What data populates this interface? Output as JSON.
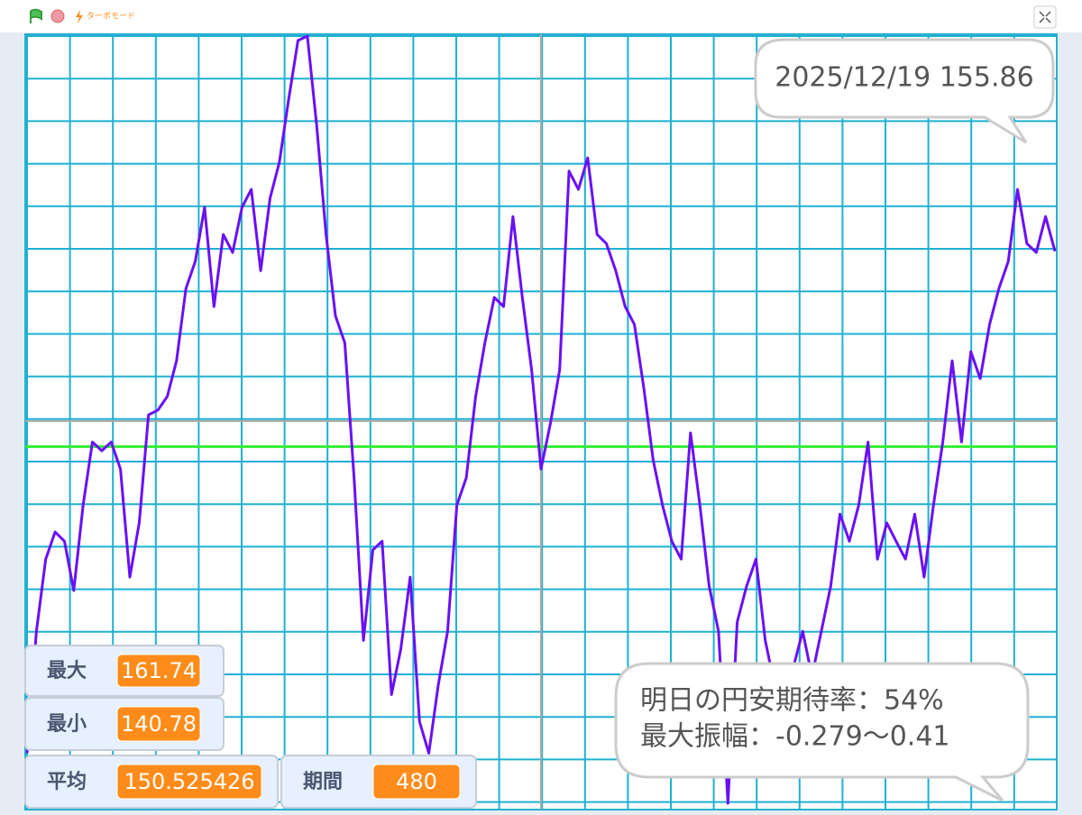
{
  "topbar": {
    "turbo": "ターボモード"
  },
  "monitors": [
    {
      "label": "最大",
      "value": 161.74
    },
    {
      "label": "最小",
      "value": 140.78
    },
    {
      "label": "平均",
      "value": 150.525426
    },
    {
      "label": "期間",
      "value": 480
    }
  ],
  "bubbles": {
    "latest": "2025/12/19 155.86",
    "line1": "明日の円安期待率：54%",
    "line2": "最大振幅：-0.279〜0.41"
  },
  "chart_data": {
    "type": "line",
    "color": "#6a10f5",
    "values": [
      142.15,
      145.48,
      147.45,
      148.19,
      147.94,
      146.59,
      148.93,
      150.65,
      150.41,
      150.65,
      149.91,
      146.96,
      148.44,
      151.39,
      151.52,
      151.89,
      152.87,
      154.84,
      155.58,
      157.06,
      154.35,
      156.32,
      155.83,
      157.06,
      157.55,
      155.33,
      157.31,
      158.29,
      160.02,
      161.62,
      161.74,
      159.28,
      156.32,
      154.1,
      153.36,
      149.67,
      145.23,
      147.7,
      147.94,
      143.75,
      144.99,
      146.96,
      143.01,
      142.15,
      144.0,
      145.48,
      148.93,
      149.67,
      151.89,
      153.36,
      154.6,
      154.35,
      156.81,
      154.6,
      152.62,
      149.91,
      151.15,
      152.62,
      158.05,
      157.55,
      158.41,
      156.32,
      156.07,
      155.33,
      154.35,
      153.86,
      152.13,
      150.16,
      148.93,
      147.94,
      147.45,
      150.9,
      148.93,
      146.71,
      145.48,
      140.78,
      145.73,
      146.71,
      147.45,
      145.23,
      144.0,
      143.51,
      144.49,
      145.48,
      144.25,
      145.48,
      146.71,
      148.68,
      147.94,
      148.93,
      150.65,
      147.45,
      148.44,
      147.94,
      147.45,
      148.68,
      146.96,
      148.93,
      150.65,
      152.87,
      150.65,
      153.12,
      152.38,
      153.86,
      154.84,
      155.58,
      157.55,
      156.07,
      155.83,
      156.81,
      155.86
    ]
  }
}
